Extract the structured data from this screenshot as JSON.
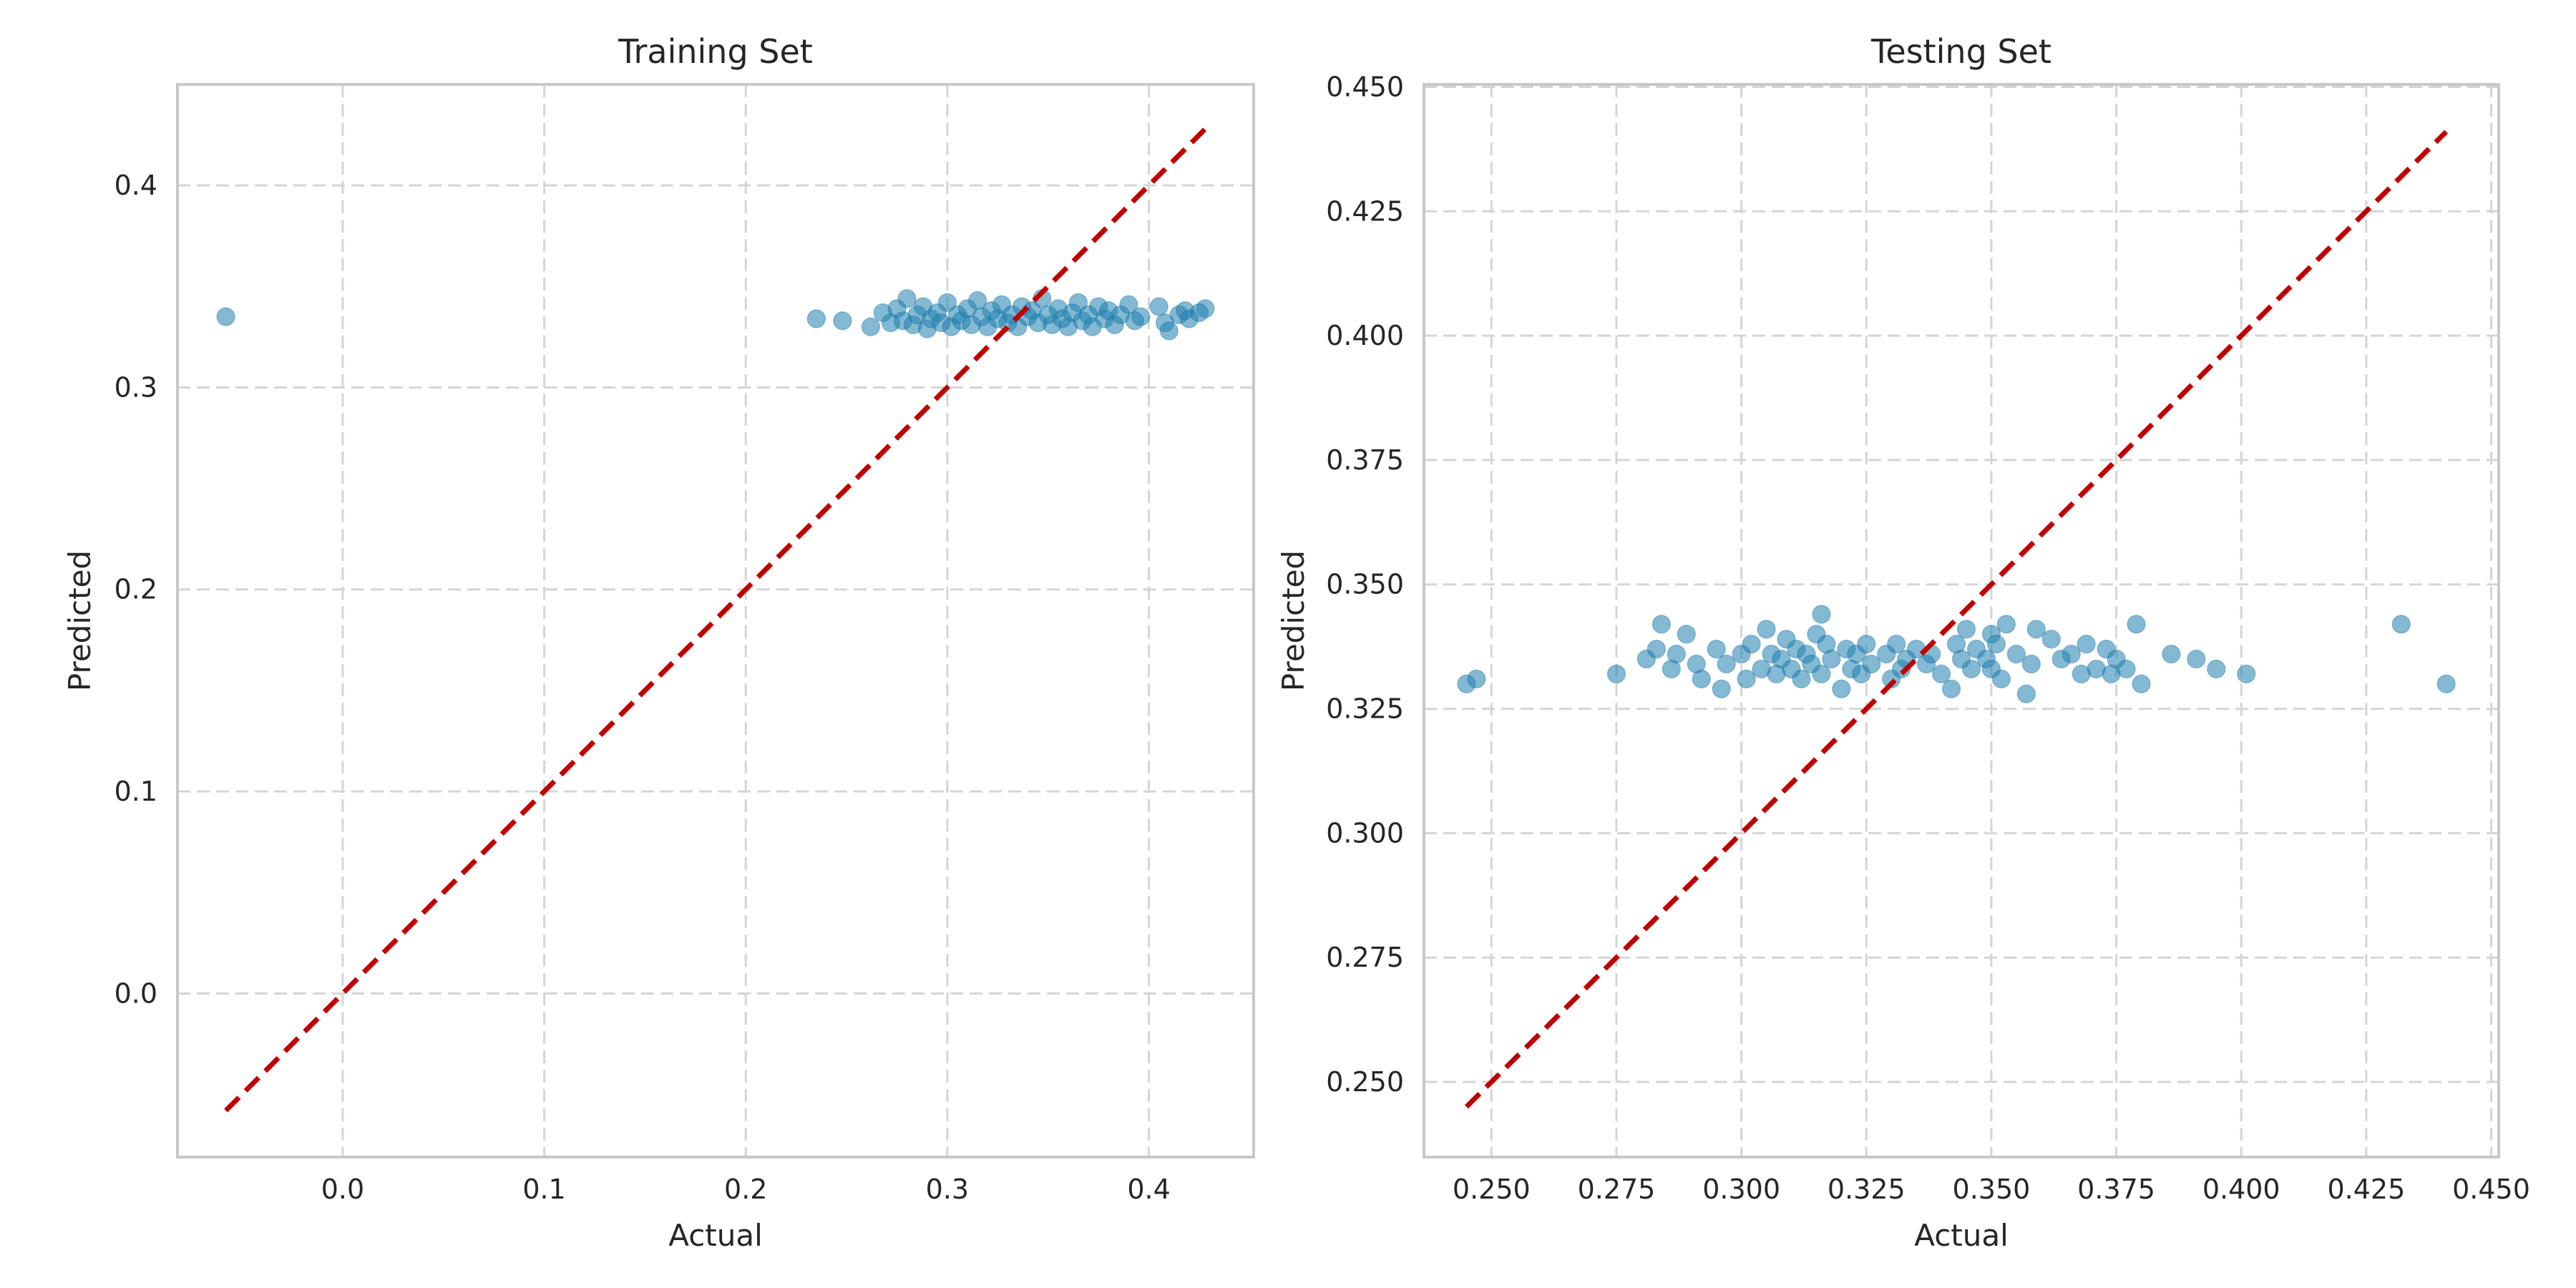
{
  "chart_data": [
    {
      "type": "scatter",
      "title": "Training Set",
      "xlabel": "Actual",
      "ylabel": "Predicted",
      "xlim": [
        -0.082,
        0.452
      ],
      "ylim": [
        -0.081,
        0.45
      ],
      "xticks": [
        0.0,
        0.1,
        0.2,
        0.3,
        0.4
      ],
      "xtick_labels": [
        "0.0",
        "0.1",
        "0.2",
        "0.3",
        "0.4"
      ],
      "yticks": [
        0.0,
        0.1,
        0.2,
        0.3,
        0.4
      ],
      "ytick_labels": [
        "0.0",
        "0.1",
        "0.2",
        "0.3",
        "0.4"
      ],
      "grid": true,
      "reference_line": {
        "x": [
          -0.058,
          0.428
        ],
        "y": [
          -0.058,
          0.428
        ],
        "color": "#c00000",
        "style": "dashed"
      },
      "points": {
        "color": "#1f7fb0",
        "x": [
          -0.058,
          0.235,
          0.248,
          0.262,
          0.268,
          0.272,
          0.275,
          0.278,
          0.28,
          0.283,
          0.285,
          0.288,
          0.29,
          0.292,
          0.295,
          0.297,
          0.3,
          0.302,
          0.305,
          0.307,
          0.31,
          0.312,
          0.315,
          0.317,
          0.32,
          0.322,
          0.325,
          0.327,
          0.33,
          0.332,
          0.335,
          0.337,
          0.34,
          0.342,
          0.345,
          0.347,
          0.35,
          0.352,
          0.355,
          0.357,
          0.36,
          0.362,
          0.365,
          0.367,
          0.37,
          0.372,
          0.375,
          0.378,
          0.38,
          0.383,
          0.386,
          0.39,
          0.393,
          0.396,
          0.405,
          0.408,
          0.41,
          0.415,
          0.418,
          0.42,
          0.425,
          0.428
        ],
        "y": [
          0.335,
          0.334,
          0.333,
          0.33,
          0.337,
          0.332,
          0.339,
          0.333,
          0.344,
          0.331,
          0.336,
          0.34,
          0.329,
          0.334,
          0.337,
          0.332,
          0.342,
          0.33,
          0.336,
          0.333,
          0.339,
          0.331,
          0.343,
          0.335,
          0.33,
          0.338,
          0.334,
          0.341,
          0.332,
          0.336,
          0.33,
          0.34,
          0.335,
          0.338,
          0.332,
          0.344,
          0.336,
          0.331,
          0.339,
          0.334,
          0.33,
          0.337,
          0.342,
          0.333,
          0.336,
          0.33,
          0.34,
          0.334,
          0.338,
          0.331,
          0.336,
          0.341,
          0.333,
          0.335,
          0.34,
          0.332,
          0.328,
          0.336,
          0.338,
          0.334,
          0.337,
          0.339
        ]
      }
    },
    {
      "type": "scatter",
      "title": "Testing Set",
      "xlabel": "Actual",
      "ylabel": "Predicted",
      "xlim": [
        0.2365,
        0.4515
      ],
      "ylim": [
        0.2349,
        0.4505
      ],
      "xticks": [
        0.25,
        0.275,
        0.3,
        0.325,
        0.35,
        0.375,
        0.4,
        0.425,
        0.45
      ],
      "xtick_labels": [
        "0.250",
        "0.275",
        "0.300",
        "0.325",
        "0.350",
        "0.375",
        "0.400",
        "0.425",
        "0.450"
      ],
      "yticks": [
        0.25,
        0.275,
        0.3,
        0.325,
        0.35,
        0.375,
        0.4,
        0.425,
        0.45
      ],
      "ytick_labels": [
        "0.250",
        "0.275",
        "0.300",
        "0.325",
        "0.350",
        "0.375",
        "0.400",
        "0.425",
        "0.450"
      ],
      "grid": true,
      "reference_line": {
        "x": [
          0.245,
          0.441
        ],
        "y": [
          0.245,
          0.441
        ],
        "color": "#c00000",
        "style": "dashed"
      },
      "points": {
        "color": "#1f7fb0",
        "x": [
          0.245,
          0.247,
          0.275,
          0.281,
          0.283,
          0.284,
          0.286,
          0.287,
          0.289,
          0.291,
          0.292,
          0.295,
          0.296,
          0.297,
          0.3,
          0.301,
          0.302,
          0.304,
          0.305,
          0.306,
          0.307,
          0.308,
          0.309,
          0.31,
          0.311,
          0.312,
          0.313,
          0.314,
          0.315,
          0.316,
          0.316,
          0.317,
          0.318,
          0.32,
          0.321,
          0.322,
          0.323,
          0.324,
          0.325,
          0.326,
          0.329,
          0.33,
          0.331,
          0.332,
          0.333,
          0.335,
          0.337,
          0.338,
          0.34,
          0.342,
          0.343,
          0.344,
          0.345,
          0.346,
          0.347,
          0.349,
          0.35,
          0.35,
          0.351,
          0.352,
          0.353,
          0.355,
          0.357,
          0.358,
          0.359,
          0.362,
          0.364,
          0.366,
          0.368,
          0.369,
          0.371,
          0.373,
          0.374,
          0.375,
          0.377,
          0.379,
          0.38,
          0.386,
          0.391,
          0.395,
          0.401,
          0.432,
          0.441
        ],
        "y": [
          0.33,
          0.331,
          0.332,
          0.335,
          0.337,
          0.342,
          0.333,
          0.336,
          0.34,
          0.334,
          0.331,
          0.337,
          0.329,
          0.334,
          0.336,
          0.331,
          0.338,
          0.333,
          0.341,
          0.336,
          0.332,
          0.335,
          0.339,
          0.333,
          0.337,
          0.331,
          0.336,
          0.334,
          0.34,
          0.344,
          0.332,
          0.338,
          0.335,
          0.329,
          0.337,
          0.333,
          0.336,
          0.332,
          0.338,
          0.334,
          0.336,
          0.331,
          0.338,
          0.333,
          0.335,
          0.337,
          0.334,
          0.336,
          0.332,
          0.329,
          0.338,
          0.335,
          0.341,
          0.333,
          0.337,
          0.335,
          0.34,
          0.333,
          0.338,
          0.331,
          0.342,
          0.336,
          0.328,
          0.334,
          0.341,
          0.339,
          0.335,
          0.336,
          0.332,
          0.338,
          0.333,
          0.337,
          0.332,
          0.335,
          0.333,
          0.342,
          0.33,
          0.336,
          0.335,
          0.333,
          0.332,
          0.342,
          0.33
        ]
      }
    }
  ]
}
